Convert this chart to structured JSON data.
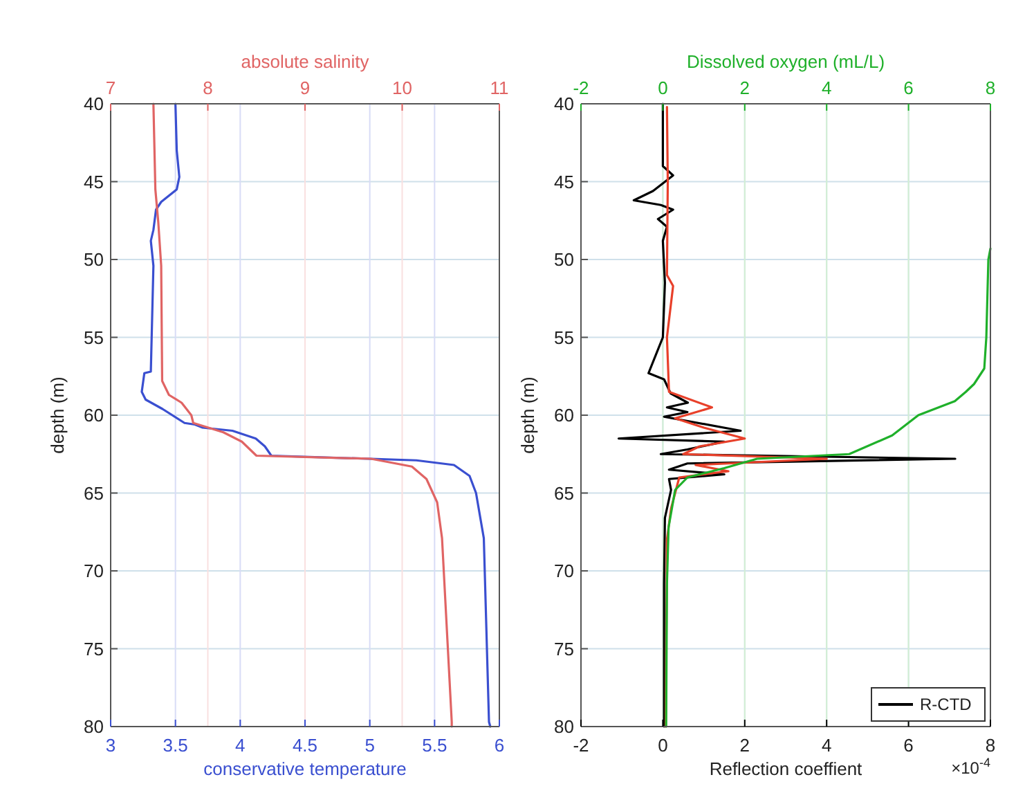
{
  "chart_data": [
    {
      "type": "line",
      "xlabel": "conservative temperature",
      "x2label": "absolute salinity",
      "ylabel": "depth (m)",
      "xlim": [
        3,
        6
      ],
      "xticks": [
        3,
        3.5,
        4,
        4.5,
        5,
        5.5,
        6
      ],
      "x2lim": [
        7,
        11
      ],
      "x2ticks": [
        7,
        8,
        9,
        10,
        11
      ],
      "ylim": [
        80,
        40
      ],
      "yticks": [
        40,
        45,
        50,
        55,
        60,
        65,
        70,
        75,
        80
      ],
      "grid": true,
      "legend": false,
      "series": [
        {
          "color": "#3a4fd0",
          "x": [
            3.5,
            3.51,
            3.53,
            3.51,
            3.39,
            3.35,
            3.33,
            3.31,
            3.33,
            3.31,
            3.26,
            3.24,
            3.27,
            3.4,
            3.57,
            3.65,
            3.71,
            3.94,
            4.12,
            4.19,
            4.24,
            5.36,
            5.65,
            5.77,
            5.82,
            5.88,
            5.92,
            5.93
          ],
          "values": [
            40,
            43,
            44.7,
            45.5,
            46.3,
            46.8,
            48.1,
            48.8,
            50.4,
            57.2,
            57.3,
            58.5,
            59,
            59.6,
            60.5,
            60.6,
            60.8,
            61,
            61.5,
            62,
            62.6,
            62.9,
            63.2,
            63.9,
            65,
            67.9,
            79.7,
            80
          ]
        },
        {
          "color": "#e06464",
          "axis": "x2",
          "x": [
            7.44,
            7.46,
            7.49,
            7.52,
            7.53,
            7.6,
            7.73,
            7.83,
            7.85,
            8.16,
            8.35,
            8.5,
            9.68,
            10.1,
            10.25,
            10.36,
            10.41,
            10.51,
            10.51
          ],
          "values": [
            40,
            45.5,
            47.6,
            50.4,
            57.8,
            58.7,
            59.2,
            60,
            60.5,
            61.1,
            61.7,
            62.6,
            62.8,
            63.3,
            64.1,
            65.6,
            67.9,
            79.7,
            80
          ]
        }
      ]
    },
    {
      "type": "line",
      "xlabel": "Reflection coeffient",
      "x2label": "Dissolved oxygen (mL/L)",
      "ylabel": "depth (m)",
      "xlim": [
        -2,
        8
      ],
      "xticks": [
        -2,
        0,
        2,
        4,
        6,
        8
      ],
      "x2lim": [
        -2,
        8
      ],
      "x2ticks": [
        -2,
        0,
        2,
        4,
        6,
        8
      ],
      "ylim": [
        80,
        40
      ],
      "yticks": [
        40,
        45,
        50,
        55,
        60,
        65,
        70,
        75,
        80
      ],
      "grid": true,
      "legend": "bottom right",
      "annotations": [
        "×10$^{-4}$"
      ],
      "series": [
        {
          "name": "R-CTD",
          "color": "#000000",
          "x": [
            0,
            0,
            0.25,
            -0.24,
            -0.71,
            -0.05,
            0.25,
            -0.12,
            0.1,
            0,
            0.05,
            0,
            -0.35,
            0.03,
            0.19,
            0.61,
            0.1,
            0.6,
            0.03,
            1.9,
            -1.08,
            1.5,
            0.6,
            -0.05,
            7.14,
            0.6,
            0.15,
            1.5,
            0.15,
            0.2,
            0.05,
            0.03,
            0.03
          ],
          "values": [
            40,
            44,
            44.6,
            45.6,
            46.2,
            46.5,
            46.8,
            47.4,
            47.9,
            48.8,
            51.5,
            55,
            57.3,
            57.7,
            58.6,
            59.2,
            59.5,
            59.8,
            60.1,
            61,
            61.5,
            61.7,
            62.2,
            62.5,
            62.8,
            63.1,
            63.5,
            63.8,
            64.1,
            64.8,
            66.6,
            70.8,
            80
          ]
        },
        {
          "color": "#e8402a",
          "x": [
            0.1,
            0.12,
            0.1,
            0.25,
            0.1,
            0.15,
            1.2,
            0.3,
            1,
            2,
            0.9,
            0.5,
            4,
            0.8,
            1.6,
            0.4,
            0.3,
            0.2,
            0.1,
            0.07
          ],
          "values": [
            40.2,
            45,
            51,
            51.7,
            55,
            58.5,
            59.5,
            60.2,
            60.8,
            61.5,
            62,
            62.5,
            62.8,
            63.2,
            63.6,
            64,
            65,
            66,
            68,
            80
          ]
        },
        {
          "color": "#1fb02a",
          "axis": "x2",
          "x": [
            8,
            7.95,
            7.9,
            7.85,
            7.6,
            7.4,
            7.13,
            6.24,
            5.6,
            4.55,
            2.3,
            1.5,
            0.6,
            0.3,
            0.14,
            0.1,
            0.08
          ],
          "values": [
            49.3,
            50,
            55,
            57,
            58,
            58.5,
            59.1,
            60,
            61.3,
            62.5,
            62.8,
            63.4,
            64,
            64.8,
            67.2,
            70.8,
            80
          ]
        }
      ]
    }
  ]
}
